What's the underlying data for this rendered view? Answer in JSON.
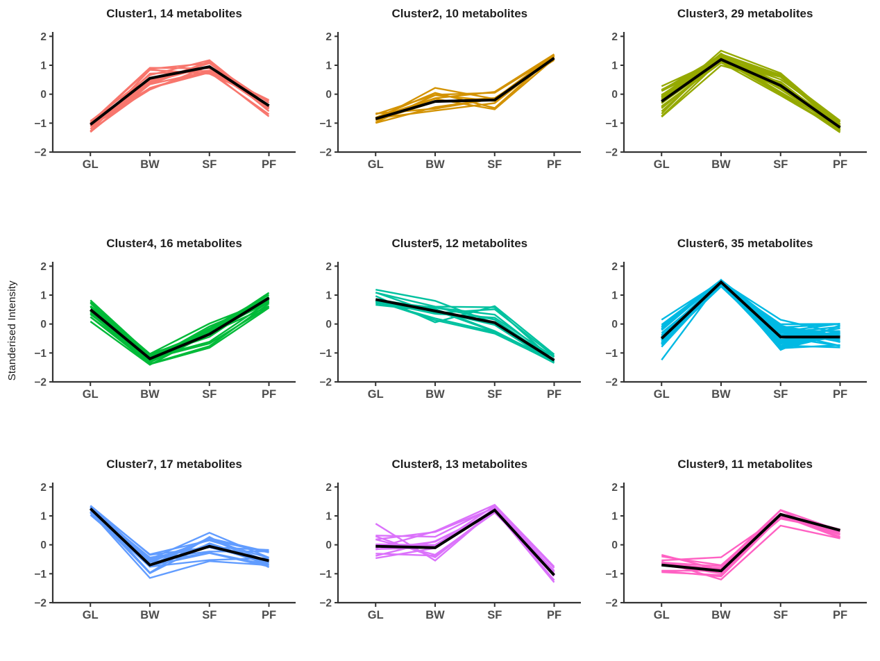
{
  "ylabel": "Standerised Intensity",
  "axis": {
    "y_tick_labels": [
      "2",
      "1",
      "0",
      "−1",
      "−2"
    ],
    "y_tick_values": [
      2,
      1,
      0,
      -1,
      -2
    ],
    "ylim": [
      -2,
      2.2
    ],
    "categories": [
      "GL",
      "BW",
      "SF",
      "PF"
    ],
    "grid": "off",
    "legend": "none"
  },
  "colors": {
    "background": "#ffffff",
    "mean_line": "#000000",
    "axis_line": "#333333",
    "tick_label": "#4d4d4d",
    "title_text": "#1f1f1f"
  },
  "chart_data": [
    {
      "type": "line",
      "title": "Cluster1, 14 metabolites",
      "cluster": "Cluster1",
      "n_metabolites": 14,
      "color": "#F8766D",
      "categories": [
        "GL",
        "BW",
        "SF",
        "PF"
      ],
      "mean": [
        -1.05,
        0.55,
        0.95,
        -0.4
      ]
    },
    {
      "type": "line",
      "title": "Cluster2, 10 metabolites",
      "cluster": "Cluster2",
      "n_metabolites": 10,
      "color": "#D39200",
      "categories": [
        "GL",
        "BW",
        "SF",
        "PF"
      ],
      "mean": [
        -0.85,
        -0.25,
        -0.2,
        1.25
      ]
    },
    {
      "type": "line",
      "title": "Cluster3, 29 metabolites",
      "cluster": "Cluster3",
      "n_metabolites": 29,
      "color": "#95A900",
      "categories": [
        "GL",
        "BW",
        "SF",
        "PF"
      ],
      "mean": [
        -0.25,
        1.2,
        0.3,
        -1.15
      ]
    },
    {
      "type": "line",
      "title": "Cluster4, 16 metabolites",
      "cluster": "Cluster4",
      "n_metabolites": 16,
      "color": "#00BA38",
      "categories": [
        "GL",
        "BW",
        "SF",
        "PF"
      ],
      "mean": [
        0.5,
        -1.2,
        -0.35,
        0.9
      ]
    },
    {
      "type": "line",
      "title": "Cluster5, 12 metabolites",
      "cluster": "Cluster5",
      "n_metabolites": 12,
      "color": "#00C19F",
      "categories": [
        "GL",
        "BW",
        "SF",
        "PF"
      ],
      "mean": [
        0.85,
        0.45,
        0.05,
        -1.25
      ]
    },
    {
      "type": "line",
      "title": "Cluster6, 35 metabolites",
      "cluster": "Cluster6",
      "n_metabolites": 35,
      "color": "#00B9E3",
      "categories": [
        "GL",
        "BW",
        "SF",
        "PF"
      ],
      "mean": [
        -0.5,
        1.45,
        -0.45,
        -0.45
      ]
    },
    {
      "type": "line",
      "title": "Cluster7, 17 metabolites",
      "cluster": "Cluster7",
      "n_metabolites": 17,
      "color": "#619CFF",
      "categories": [
        "GL",
        "BW",
        "SF",
        "PF"
      ],
      "mean": [
        1.25,
        -0.7,
        -0.05,
        -0.55
      ]
    },
    {
      "type": "line",
      "title": "Cluster8, 13 metabolites",
      "cluster": "Cluster8",
      "n_metabolites": 13,
      "color": "#DB72FB",
      "categories": [
        "GL",
        "BW",
        "SF",
        "PF"
      ],
      "mean": [
        -0.05,
        -0.1,
        1.2,
        -1.05
      ]
    },
    {
      "type": "line",
      "title": "Cluster9, 11 metabolites",
      "cluster": "Cluster9",
      "n_metabolites": 11,
      "color": "#FF61C3",
      "categories": [
        "GL",
        "BW",
        "SF",
        "PF"
      ],
      "mean": [
        -0.7,
        -0.9,
        1.05,
        0.5
      ]
    }
  ]
}
